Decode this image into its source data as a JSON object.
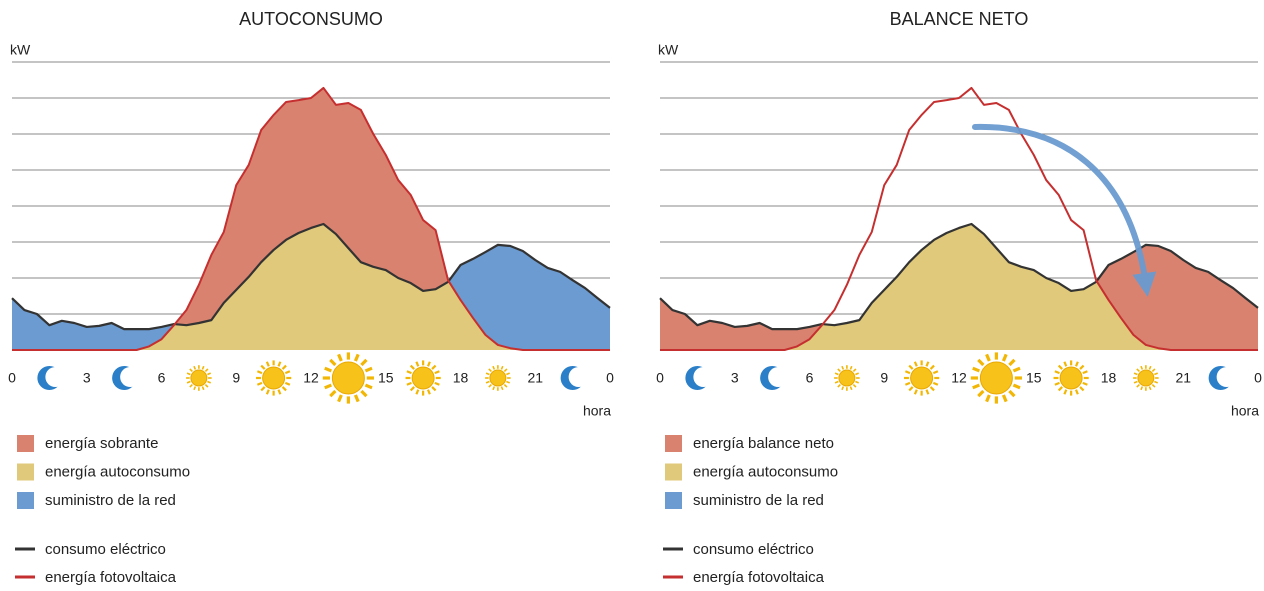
{
  "chart_data": [
    {
      "type": "area",
      "title": "AUTOCONSUMO",
      "y_label": "kW",
      "x_label": "hora",
      "xlim": [
        0,
        24
      ],
      "xticks": [
        0,
        3,
        6,
        9,
        12,
        15,
        18,
        21,
        {
          "value": 24,
          "label": "0"
        }
      ],
      "ylim": [
        0,
        8
      ],
      "yticks": [
        1,
        2,
        3,
        4,
        5,
        6,
        7,
        8
      ],
      "grid": true,
      "x": [
        0,
        0.5,
        1,
        1.5,
        2,
        2.5,
        3,
        3.5,
        4,
        4.5,
        5,
        5.5,
        6,
        6.5,
        7,
        7.5,
        8,
        8.5,
        9,
        9.5,
        10,
        10.5,
        11,
        11.5,
        12,
        12.5,
        13,
        13.5,
        14,
        14.5,
        15,
        15.5,
        16,
        16.5,
        17,
        17.5,
        18,
        18.5,
        19,
        19.5,
        20,
        20.5,
        21,
        21.5,
        22,
        22.5,
        23,
        23.5,
        24
      ],
      "series": [
        {
          "name": "consumo eléctrico",
          "color": "#333333",
          "values": [
            1.44,
            1.11,
            1.0,
            0.69,
            0.81,
            0.75,
            0.64,
            0.67,
            0.75,
            0.58,
            0.58,
            0.58,
            0.64,
            0.72,
            0.69,
            0.75,
            0.83,
            1.31,
            1.67,
            2.03,
            2.44,
            2.78,
            3.06,
            3.25,
            3.39,
            3.5,
            3.22,
            2.83,
            2.44,
            2.31,
            2.22,
            2.0,
            1.86,
            1.64,
            1.69,
            1.89,
            2.36,
            2.53,
            2.72,
            2.92,
            2.89,
            2.75,
            2.5,
            2.28,
            2.17,
            1.94,
            1.72,
            1.44,
            1.17
          ]
        },
        {
          "name": "energía fotovoltaica",
          "color": "#c62f2f",
          "values": [
            0,
            0,
            0,
            0,
            0,
            0,
            0,
            0,
            0,
            0,
            0,
            0.1,
            0.3,
            0.69,
            1.11,
            1.81,
            2.64,
            3.28,
            4.58,
            5.14,
            6.11,
            6.53,
            6.89,
            6.94,
            7.0,
            7.28,
            6.81,
            6.86,
            6.67,
            6.0,
            5.42,
            4.72,
            4.31,
            3.61,
            3.33,
            1.94,
            1.39,
            0.89,
            0.42,
            0.14,
            0.05,
            0,
            0,
            0,
            0,
            0,
            0,
            0,
            0
          ]
        }
      ],
      "areas": [
        {
          "name": "energía sobrante",
          "color": "#d9826f"
        },
        {
          "name": "energía autoconsumo",
          "color": "#e0c97a"
        },
        {
          "name": "suministro de la red",
          "color": "#6b9bd0"
        }
      ]
    },
    {
      "type": "area",
      "title": "BALANCE NETO",
      "y_label": "kW",
      "x_label": "hora",
      "xlim": [
        0,
        24
      ],
      "xticks": [
        0,
        3,
        6,
        9,
        12,
        15,
        18,
        21,
        {
          "value": 24,
          "label": "0"
        }
      ],
      "ylim": [
        0,
        8
      ],
      "yticks": [
        1,
        2,
        3,
        4,
        5,
        6,
        7,
        8
      ],
      "grid": true,
      "x": [
        0,
        0.5,
        1,
        1.5,
        2,
        2.5,
        3,
        3.5,
        4,
        4.5,
        5,
        5.5,
        6,
        6.5,
        7,
        7.5,
        8,
        8.5,
        9,
        9.5,
        10,
        10.5,
        11,
        11.5,
        12,
        12.5,
        13,
        13.5,
        14,
        14.5,
        15,
        15.5,
        16,
        16.5,
        17,
        17.5,
        18,
        18.5,
        19,
        19.5,
        20,
        20.5,
        21,
        21.5,
        22,
        22.5,
        23,
        23.5,
        24
      ],
      "series": [
        {
          "name": "consumo eléctrico",
          "color": "#333333",
          "values": [
            1.44,
            1.11,
            1.0,
            0.69,
            0.81,
            0.75,
            0.64,
            0.67,
            0.75,
            0.58,
            0.58,
            0.58,
            0.64,
            0.72,
            0.69,
            0.75,
            0.83,
            1.31,
            1.67,
            2.03,
            2.44,
            2.78,
            3.06,
            3.25,
            3.39,
            3.5,
            3.22,
            2.83,
            2.44,
            2.31,
            2.22,
            2.0,
            1.86,
            1.64,
            1.69,
            1.89,
            2.36,
            2.53,
            2.72,
            2.92,
            2.89,
            2.75,
            2.5,
            2.28,
            2.17,
            1.94,
            1.72,
            1.44,
            1.17
          ]
        },
        {
          "name": "energía fotovoltaica",
          "color": "#c62f2f",
          "values": [
            0,
            0,
            0,
            0,
            0,
            0,
            0,
            0,
            0,
            0,
            0,
            0.1,
            0.3,
            0.69,
            1.11,
            1.81,
            2.64,
            3.28,
            4.58,
            5.14,
            6.11,
            6.53,
            6.89,
            6.94,
            7.0,
            7.28,
            6.81,
            6.86,
            6.67,
            6.0,
            5.42,
            4.72,
            4.31,
            3.61,
            3.33,
            1.94,
            1.39,
            0.89,
            0.42,
            0.14,
            0.05,
            0,
            0,
            0,
            0,
            0,
            0,
            0,
            0
          ]
        }
      ],
      "areas": [
        {
          "name": "energía balance neto",
          "color": "#d9826f"
        },
        {
          "name": "energía autoconsumo",
          "color": "#e0c97a"
        },
        {
          "name": "suministro de la red",
          "color": "#6b9bd0"
        }
      ]
    }
  ]
}
